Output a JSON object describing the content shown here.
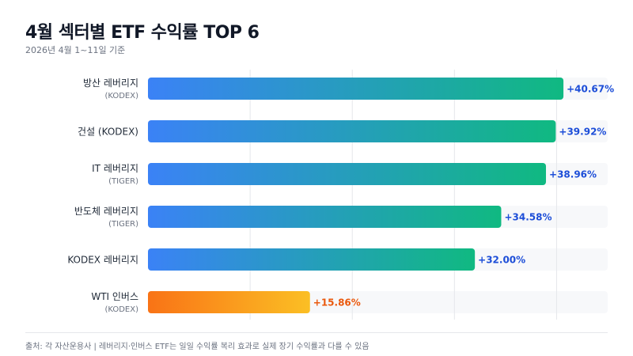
{
  "header": {
    "title": "4월 섹터별 ETF 수익률 TOP 6",
    "subtitle": "2026년 4월 1~11일 기준"
  },
  "footer": {
    "note": "출처: 각 자산운용사 | 레버리지·인버스 ETF는 일일 수익률 복리 효과로 실제 장기 수익률과 다를 수 있음"
  },
  "colors": {
    "gain_start": "#3b82f6",
    "gain_end": "#10b981",
    "inverse_start": "#f97316",
    "inverse_end": "#fbbf24",
    "gain_label": "#1d4ed8",
    "inverse_label": "#ea580c",
    "track": "#f7f8fa",
    "grid": "#e5e7eb"
  },
  "chart_data": {
    "type": "bar",
    "orientation": "horizontal",
    "xlim": [
      0,
      45
    ],
    "grid": true,
    "value_format": "+0.00%",
    "categories": [
      {
        "label": "방산 레버리지",
        "sublabel": "(KODEX)"
      },
      {
        "label": "건설 (KODEX)",
        "sublabel": ""
      },
      {
        "label": "IT 레버리지",
        "sublabel": "(TIGER)"
      },
      {
        "label": "반도체 레버리지",
        "sublabel": "(TIGER)"
      },
      {
        "label": "KODEX 레버리지",
        "sublabel": ""
      },
      {
        "label": "WTI 인버스",
        "sublabel": "(KODEX)"
      }
    ],
    "values": [
      40.67,
      39.92,
      38.96,
      34.58,
      32.0,
      15.86
    ],
    "value_labels": [
      "+40.67%",
      "+39.92%",
      "+38.96%",
      "+34.58%",
      "+32.00%",
      "+15.86%"
    ],
    "bar_style": [
      "gain",
      "gain",
      "gain",
      "gain",
      "gain",
      "inverse"
    ]
  }
}
